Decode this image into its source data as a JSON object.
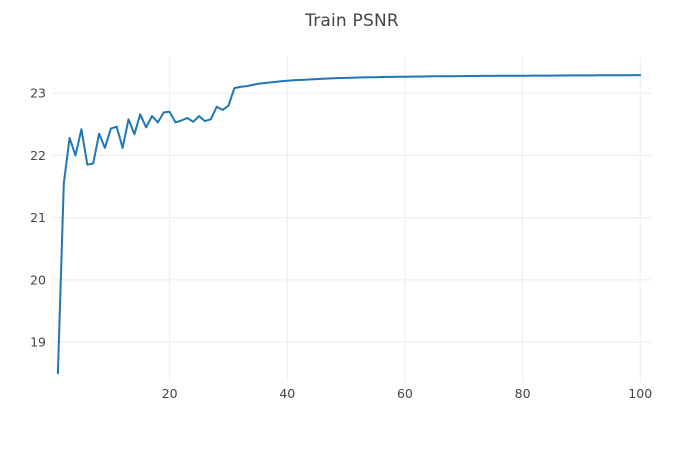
{
  "chart_data": {
    "type": "line",
    "title": "Train PSNR",
    "xlabel": "",
    "ylabel": "",
    "grid": true,
    "legend_shown": false,
    "background_color": "#ffffff",
    "grid_color": "#ececec",
    "text_color": "#444444",
    "xlim": [
      0,
      102
    ],
    "ylim": [
      18.36,
      23.58
    ],
    "x_ticks": [
      20,
      40,
      60,
      80,
      100
    ],
    "y_ticks": [
      19,
      20,
      21,
      22,
      23
    ],
    "series": [
      {
        "name": "Train PSNR",
        "color": "#1f77b4",
        "line_width": 2,
        "x": [
          1,
          2,
          3,
          4,
          5,
          6,
          7,
          8,
          9,
          10,
          11,
          12,
          13,
          14,
          15,
          16,
          17,
          18,
          19,
          20,
          21,
          22,
          23,
          24,
          25,
          26,
          27,
          28,
          29,
          30,
          31,
          32,
          33,
          34,
          35,
          36,
          37,
          38,
          39,
          40,
          41,
          42,
          43,
          44,
          45,
          46,
          47,
          48,
          49,
          50,
          51,
          52,
          53,
          54,
          55,
          56,
          57,
          58,
          59,
          60,
          61,
          62,
          63,
          64,
          65,
          66,
          67,
          68,
          69,
          70,
          71,
          72,
          73,
          74,
          75,
          76,
          77,
          78,
          79,
          80,
          81,
          82,
          83,
          84,
          85,
          86,
          87,
          88,
          89,
          90,
          91,
          92,
          93,
          94,
          95,
          96,
          97,
          98,
          99,
          100
        ],
        "y": [
          18.5,
          21.55,
          22.28,
          22.0,
          22.42,
          21.85,
          21.87,
          22.35,
          22.12,
          22.43,
          22.46,
          22.12,
          22.58,
          22.34,
          22.66,
          22.45,
          22.63,
          22.53,
          22.69,
          22.7,
          22.53,
          22.56,
          22.6,
          22.54,
          22.63,
          22.55,
          22.58,
          22.78,
          22.73,
          22.8,
          23.08,
          23.1,
          23.11,
          23.13,
          23.15,
          23.16,
          23.17,
          23.18,
          23.19,
          23.2,
          23.205,
          23.21,
          23.215,
          23.22,
          23.225,
          23.23,
          23.235,
          23.24,
          23.242,
          23.245,
          23.247,
          23.25,
          23.252,
          23.254,
          23.256,
          23.258,
          23.26,
          23.261,
          23.262,
          23.264,
          23.265,
          23.266,
          23.267,
          23.268,
          23.27,
          23.271,
          23.272,
          23.272,
          23.273,
          23.274,
          23.275,
          23.275,
          23.276,
          23.277,
          23.277,
          23.278,
          23.278,
          23.279,
          23.279,
          23.28,
          23.28,
          23.281,
          23.281,
          23.282,
          23.282,
          23.283,
          23.283,
          23.284,
          23.284,
          23.285,
          23.285,
          23.285,
          23.286,
          23.286,
          23.287,
          23.287,
          23.288,
          23.288,
          23.289,
          23.29
        ]
      }
    ]
  }
}
